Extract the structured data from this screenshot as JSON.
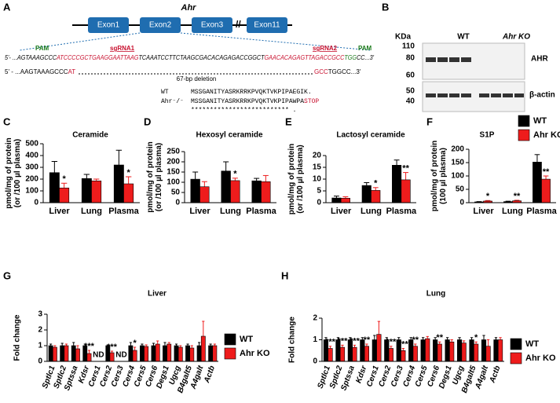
{
  "panel_a": {
    "label": "A",
    "gene": "Ahr",
    "exons": [
      "Exon1",
      "Exon2",
      "Exon3",
      "Exon11"
    ],
    "pam": "PAM",
    "sgrnas": [
      "sgRNA1",
      "sgRNA2"
    ],
    "wt_sequence": [
      "5'- ...AGTAAAGCCC",
      "ATCCCCGCTGAAGGAATTAAG",
      "TCAAATCCTTCTAAGCGACACAGAGACCGGCT",
      "GAACACAGAGTTAGACCGCC",
      "TGG",
      "CC...3'"
    ],
    "ko_sequence": [
      "5' - ...AAGTAAAGCCC",
      "AT",
      "GCC",
      "TGGCC...3'"
    ],
    "deletion": "67-bp deletion",
    "alignment": {
      "wt_name": "WT",
      "wt_protein": "MSSGANITYASRKRRKPVQKTVKPIPAEGIK.",
      "ko_name": "Ahr⁻/⁻",
      "ko_protein": "MSSGANITYASRKRRKPVQKTVKPIPAWPA",
      "stop": "STOP",
      "conservation": "**************************  ."
    }
  },
  "panel_b": {
    "label": "B",
    "unit": "KDa",
    "markers": [
      "110",
      "80",
      "60",
      "50",
      "40"
    ],
    "groups": [
      "WT",
      "Ahr KO"
    ],
    "proteins": [
      "AHR",
      "β-actin"
    ]
  },
  "chart_data": [
    {
      "type": "bar",
      "panel_label": "C",
      "title": "Ceramide",
      "ylabel": [
        "pmol/mg of protein",
        "(or /100 µl plasma)"
      ],
      "categories": [
        "Liver",
        "Lung",
        "Plasma"
      ],
      "series": [
        {
          "name": "WT",
          "color": "#000000",
          "values": [
            255,
            205,
            320
          ],
          "errors": [
            95,
            35,
            125
          ]
        },
        {
          "name": "Ahr KO",
          "color": "#ee1c1c",
          "values": [
            125,
            185,
            160
          ],
          "errors": [
            40,
            15,
            60
          ],
          "significance": [
            "*",
            null,
            "*"
          ]
        }
      ],
      "ylim": [
        0,
        500
      ],
      "yticks": [
        0,
        100,
        200,
        300,
        400,
        500
      ]
    },
    {
      "type": "bar",
      "panel_label": "D",
      "title": "Hexosyl ceramide",
      "ylabel": [
        "pmol/mg of protein",
        "(or /100 µl plasma)"
      ],
      "categories": [
        "Liver",
        "Lung",
        "Plasma"
      ],
      "series": [
        {
          "name": "WT",
          "color": "#000000",
          "values": [
            115,
            155,
            107
          ],
          "errors": [
            35,
            45,
            12
          ]
        },
        {
          "name": "Ahr KO",
          "color": "#ee1c1c",
          "values": [
            78,
            108,
            103
          ],
          "errors": [
            25,
            12,
            30
          ],
          "significance": [
            null,
            "*",
            null
          ]
        }
      ],
      "ylim": [
        0,
        250
      ],
      "yticks": [
        0,
        50,
        100,
        150,
        200,
        250
      ]
    },
    {
      "type": "bar",
      "panel_label": "E",
      "title": "Lactosyl ceramide",
      "ylabel": [
        "pmol/mg of protein",
        "(or /100 µl plasma)"
      ],
      "categories": [
        "Liver",
        "Lung",
        "Plasma"
      ],
      "series": [
        {
          "name": "WT",
          "color": "#000000",
          "values": [
            2.0,
            7.3,
            15.9
          ],
          "errors": [
            0.8,
            1.2,
            2.2
          ]
        },
        {
          "name": "Ahr KO",
          "color": "#ee1c1c",
          "values": [
            1.9,
            5.2,
            9.7
          ],
          "errors": [
            0.6,
            1.2,
            3.1
          ],
          "significance": [
            null,
            "*",
            "**"
          ]
        }
      ],
      "ylim": [
        0,
        20
      ],
      "yticks": [
        0,
        5,
        10,
        15,
        20
      ]
    },
    {
      "type": "bar",
      "panel_label": "F",
      "title": "S1P",
      "ylabel": [
        "pmol/mg of protein",
        "(100 µl plasma)"
      ],
      "categories": [
        "Liver",
        "Lung",
        "Plasma"
      ],
      "series": [
        {
          "name": "WT",
          "color": "#000000",
          "values": [
            3,
            4,
            152
          ],
          "errors": [
            1,
            1.5,
            28
          ]
        },
        {
          "name": "Ahr KO",
          "color": "#ee1c1c",
          "values": [
            6,
            7,
            88
          ],
          "errors": [
            2,
            2,
            12
          ],
          "significance": [
            "*",
            "**",
            "**"
          ]
        }
      ],
      "ylim": [
        0,
        200
      ],
      "yticks": [
        0,
        50,
        100,
        150,
        200
      ],
      "legend": "top-right"
    },
    {
      "type": "bar",
      "panel_label": "G",
      "title": "Liver",
      "ylabel": [
        "Fold change"
      ],
      "missing_label": "ND",
      "categories": [
        "Sptlc1",
        "Sptlc2",
        "Sptssa",
        "Kdsr",
        "Cers1",
        "Cers2",
        "Cers3",
        "Cers4",
        "Cers5",
        "Cers6",
        "Degs1",
        "Ugcg",
        "B4galt5",
        "A4galt",
        "Actb"
      ],
      "series": [
        {
          "name": "WT",
          "color": "#000000",
          "values": [
            1.0,
            1.0,
            1.0,
            1.0,
            null,
            1.0,
            null,
            1.0,
            1.0,
            1.0,
            1.0,
            1.0,
            1.0,
            1.0,
            1.0
          ],
          "errors": [
            0.1,
            0.15,
            0.2,
            0.1,
            null,
            0.05,
            null,
            0.2,
            0.1,
            0.15,
            0.2,
            0.1,
            0.1,
            0.2,
            0.1
          ]
        },
        {
          "name": "Ahr KO",
          "color": "#ee1c1c",
          "values": [
            0.9,
            1.0,
            0.8,
            0.5,
            null,
            0.55,
            null,
            0.7,
            0.95,
            1.1,
            1.1,
            0.9,
            0.85,
            1.6,
            1.0
          ],
          "errors": [
            0.1,
            0.1,
            0.2,
            0.2,
            null,
            0.1,
            null,
            0.2,
            0.1,
            0.2,
            0.1,
            0.1,
            0.15,
            0.95,
            0.1
          ],
          "significance": [
            null,
            null,
            null,
            "***",
            null,
            "***",
            null,
            "*",
            null,
            null,
            null,
            null,
            null,
            null,
            null
          ]
        }
      ],
      "ylim": [
        0,
        3
      ],
      "yticks": [
        0,
        1,
        2,
        3
      ],
      "legend": "right"
    },
    {
      "type": "bar",
      "panel_label": "H",
      "title": "Lung",
      "ylabel": [
        "Fold change"
      ],
      "categories": [
        "Sptlc1",
        "Sptlc2",
        "Sptssa",
        "Kdsr",
        "Cers1",
        "Cers2",
        "Cers3",
        "Cers4",
        "Cers5",
        "Cers6",
        "Degs1",
        "Ugcg",
        "B4galt5",
        "A4galt",
        "Actb"
      ],
      "series": [
        {
          "name": "WT",
          "color": "#000000",
          "values": [
            1.0,
            1.0,
            1.0,
            1.0,
            1.0,
            1.0,
            1.0,
            1.0,
            1.0,
            1.0,
            1.0,
            1.0,
            1.0,
            1.0,
            1.0
          ],
          "errors": [
            0.1,
            0.1,
            0.1,
            0.1,
            0.2,
            0.1,
            0.1,
            0.1,
            0.1,
            0.1,
            0.1,
            0.1,
            0.1,
            0.2,
            0.1
          ]
        },
        {
          "name": "Ahr KO",
          "color": "#ee1c1c",
          "values": [
            0.6,
            0.65,
            0.65,
            0.7,
            1.25,
            0.6,
            0.5,
            0.7,
            1.05,
            0.8,
            0.9,
            0.85,
            0.8,
            0.7,
            1.0
          ],
          "errors": [
            0.1,
            0.1,
            0.1,
            0.1,
            0.6,
            0.1,
            0.1,
            0.1,
            0.1,
            0.1,
            0.1,
            0.1,
            0.1,
            0.3,
            0.1
          ],
          "significance": [
            "***",
            "***",
            "***",
            "**",
            null,
            "***",
            "***",
            "**",
            null,
            "**",
            null,
            null,
            "*",
            null,
            null
          ]
        }
      ],
      "ylim": [
        0,
        2
      ],
      "yticks": [
        0,
        1,
        2
      ],
      "legend": "right"
    }
  ]
}
